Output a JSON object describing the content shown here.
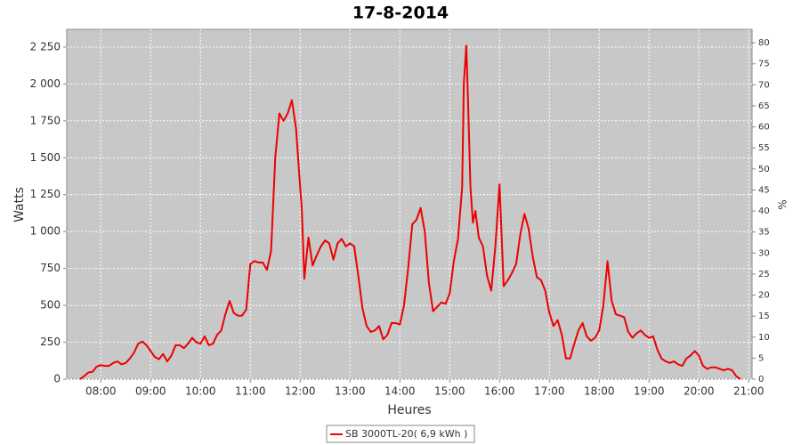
{
  "chart_data": {
    "type": "line",
    "title": "17-8-2014",
    "x_label": "Heures",
    "y_label": "Watts",
    "y2_label": "%",
    "x": [
      "07:35",
      "07:40",
      "07:45",
      "07:50",
      "07:55",
      "08:00",
      "08:05",
      "08:10",
      "08:15",
      "08:20",
      "08:25",
      "08:30",
      "08:35",
      "08:40",
      "08:45",
      "08:50",
      "08:55",
      "09:00",
      "09:05",
      "09:10",
      "09:15",
      "09:20",
      "09:25",
      "09:30",
      "09:35",
      "09:40",
      "09:45",
      "09:50",
      "09:55",
      "10:00",
      "10:05",
      "10:10",
      "10:15",
      "10:20",
      "10:25",
      "10:30",
      "10:35",
      "10:40",
      "10:45",
      "10:50",
      "10:55",
      "11:00",
      "11:05",
      "11:10",
      "11:15",
      "11:20",
      "11:25",
      "11:30",
      "11:35",
      "11:40",
      "11:45",
      "11:50",
      "11:55",
      "12:00",
      "12:02",
      "12:05",
      "12:08",
      "12:10",
      "12:15",
      "12:20",
      "12:25",
      "12:30",
      "12:35",
      "12:40",
      "12:45",
      "12:50",
      "12:55",
      "13:00",
      "13:05",
      "13:10",
      "13:15",
      "13:20",
      "13:25",
      "13:30",
      "13:35",
      "13:40",
      "13:45",
      "13:50",
      "13:55",
      "14:00",
      "14:05",
      "14:10",
      "14:15",
      "14:20",
      "14:25",
      "14:30",
      "14:35",
      "14:40",
      "14:45",
      "14:50",
      "14:55",
      "15:00",
      "15:05",
      "15:10",
      "15:15",
      "15:17",
      "15:20",
      "15:22",
      "15:25",
      "15:28",
      "15:31",
      "15:35",
      "15:40",
      "15:45",
      "15:50",
      "15:55",
      "16:00",
      "16:05",
      "16:10",
      "16:15",
      "16:20",
      "16:25",
      "16:30",
      "16:35",
      "16:40",
      "16:45",
      "16:50",
      "16:55",
      "17:00",
      "17:05",
      "17:10",
      "17:15",
      "17:20",
      "17:25",
      "17:30",
      "17:35",
      "17:40",
      "17:45",
      "17:50",
      "17:55",
      "18:00",
      "18:05",
      "18:10",
      "18:15",
      "18:20",
      "18:25",
      "18:30",
      "18:35",
      "18:40",
      "18:45",
      "18:50",
      "18:55",
      "19:00",
      "19:05",
      "19:10",
      "19:15",
      "19:20",
      "19:25",
      "19:30",
      "19:35",
      "19:40",
      "19:45",
      "19:50",
      "19:55",
      "20:00",
      "20:05",
      "20:10",
      "20:15",
      "20:20",
      "20:25",
      "20:30",
      "20:35",
      "20:40",
      "20:45",
      "20:50"
    ],
    "series": [
      {
        "name": "SB 3000TL-20( 6,9 kWh )",
        "color": "#ee0000",
        "values": [
          0,
          20,
          45,
          50,
          85,
          95,
          90,
          90,
          110,
          120,
          100,
          110,
          140,
          180,
          240,
          255,
          230,
          190,
          150,
          135,
          170,
          120,
          160,
          230,
          230,
          210,
          240,
          280,
          250,
          240,
          290,
          230,
          240,
          300,
          330,
          440,
          530,
          450,
          430,
          430,
          470,
          780,
          800,
          790,
          790,
          740,
          870,
          1500,
          1800,
          1750,
          1800,
          1890,
          1700,
          1300,
          1150,
          680,
          850,
          960,
          770,
          840,
          900,
          940,
          920,
          810,
          920,
          950,
          900,
          920,
          900,
          700,
          480,
          360,
          320,
          330,
          360,
          270,
          300,
          380,
          380,
          370,
          500,
          750,
          1050,
          1080,
          1160,
          1000,
          650,
          460,
          490,
          520,
          510,
          580,
          800,
          950,
          1300,
          2000,
          2260,
          1900,
          1300,
          1060,
          1140,
          960,
          900,
          700,
          600,
          900,
          1320,
          630,
          670,
          720,
          780,
          980,
          1120,
          1020,
          830,
          690,
          670,
          600,
          450,
          360,
          400,
          300,
          140,
          140,
          240,
          330,
          380,
          290,
          260,
          280,
          330,
          500,
          800,
          530,
          440,
          430,
          420,
          320,
          280,
          310,
          330,
          300,
          280,
          290,
          200,
          140,
          120,
          110,
          120,
          100,
          90,
          140,
          160,
          190,
          160,
          90,
          70,
          80,
          80,
          70,
          60,
          70,
          60,
          20,
          0
        ]
      }
    ],
    "xlim": [
      "07:19",
      "21:04"
    ],
    "xticks": [
      "08:00",
      "09:00",
      "10:00",
      "11:00",
      "12:00",
      "13:00",
      "14:00",
      "15:00",
      "16:00",
      "17:00",
      "18:00",
      "19:00",
      "20:00",
      "21:00"
    ],
    "ylim": [
      0,
      2370
    ],
    "yticks": [
      0,
      250,
      500,
      750,
      {
        "value": 1000,
        "label": "1 000"
      },
      {
        "value": 1250,
        "label": "1 250"
      },
      {
        "value": 1500,
        "label": "1 500"
      },
      {
        "value": 1750,
        "label": "1 750"
      },
      {
        "value": 2000,
        "label": "2 000"
      },
      {
        "value": 2250,
        "label": "2 250"
      }
    ],
    "y2lim": [
      0,
      83.2
    ],
    "y2ticks": [
      0,
      5,
      10,
      15,
      20,
      25,
      30,
      35,
      40,
      45,
      50,
      55,
      60,
      65,
      70,
      75,
      80
    ],
    "grid": true,
    "legend": "bottom"
  }
}
